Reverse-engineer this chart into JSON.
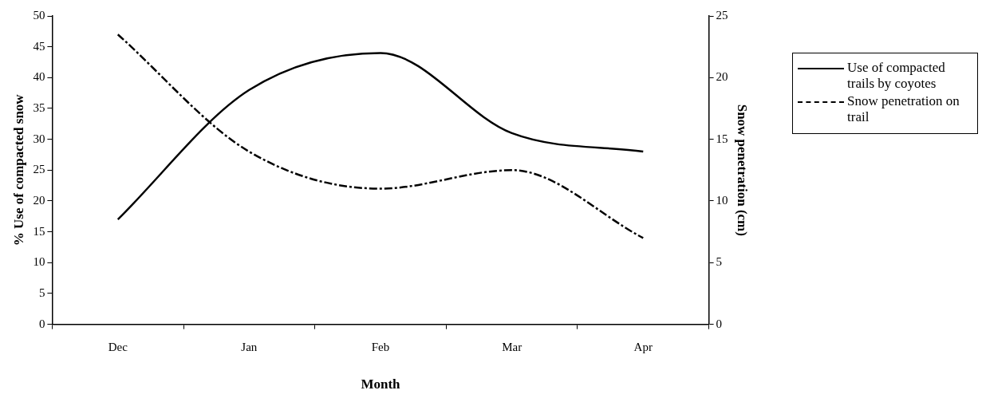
{
  "chart_data": {
    "type": "line",
    "xlabel": "Month",
    "ylabel": "% Use of compacted snow",
    "y2label": "Snow penetration (cm)",
    "categories": [
      "Dec",
      "Jan",
      "Feb",
      "Mar",
      "Apr"
    ],
    "series": [
      {
        "name": "Use of compacted trails by coyotes",
        "color": "#000000",
        "values": [
          17,
          38,
          44,
          31,
          28
        ],
        "line_style": "solid"
      },
      {
        "name": "Snow penetration on trail",
        "color": "#000000",
        "values": [
          23.5,
          14,
          11,
          12.5,
          7
        ],
        "axis": "y2",
        "line_style": "dashed"
      }
    ],
    "ylim": [
      0,
      50
    ],
    "yticks": [
      0,
      5,
      10,
      15,
      20,
      25,
      30,
      35,
      40,
      45,
      50
    ],
    "y2lim": [
      0,
      25
    ],
    "y2ticks": [
      0,
      5,
      10,
      15,
      20,
      25
    ],
    "grid": false,
    "legend": "top right",
    "marker": "none"
  }
}
